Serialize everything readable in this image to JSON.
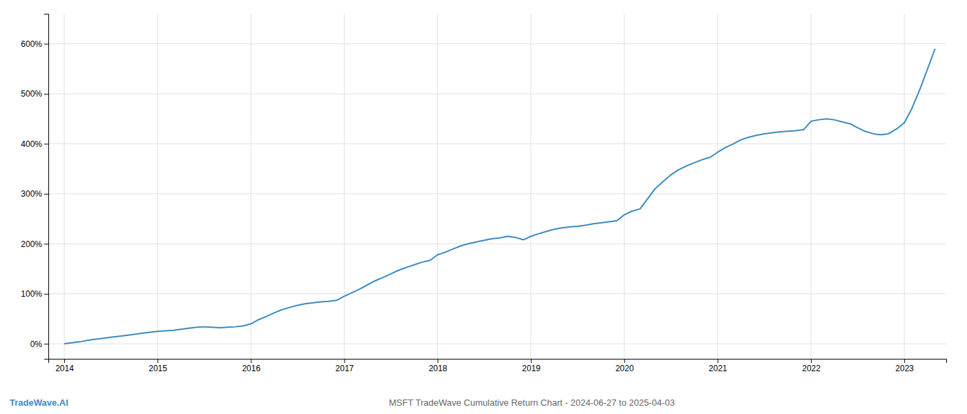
{
  "chart_data": {
    "type": "line",
    "title": "MSFT TradeWave Cumulative Return Chart - 2024-06-27 to 2025-04-03",
    "annotations": [
      "TradeWave.AI"
    ],
    "color": "#3a8abf",
    "grid": true,
    "xlim": [
      2013.83,
      2023.45
    ],
    "ylim": [
      -30,
      660
    ],
    "xticks": [
      2014,
      2015,
      2016,
      2017,
      2018,
      2019,
      2020,
      2021,
      2022,
      2023
    ],
    "yticks": [
      {
        "value": 0,
        "label": "0%"
      },
      {
        "value": 100,
        "label": "100%"
      },
      {
        "value": 200,
        "label": "200%"
      },
      {
        "value": 300,
        "label": "300%"
      },
      {
        "value": 400,
        "label": "400%"
      },
      {
        "value": 500,
        "label": "500%"
      },
      {
        "value": 600,
        "label": "600%"
      }
    ],
    "x": [
      2014.0,
      2014.08,
      2014.17,
      2014.25,
      2014.33,
      2014.42,
      2014.5,
      2014.58,
      2014.67,
      2014.75,
      2014.83,
      2014.92,
      2015.0,
      2015.08,
      2015.17,
      2015.25,
      2015.33,
      2015.42,
      2015.5,
      2015.58,
      2015.67,
      2015.75,
      2015.83,
      2015.92,
      2016.0,
      2016.08,
      2016.17,
      2016.25,
      2016.33,
      2016.42,
      2016.5,
      2016.58,
      2016.67,
      2016.75,
      2016.83,
      2016.92,
      2017.0,
      2017.08,
      2017.17,
      2017.25,
      2017.33,
      2017.42,
      2017.5,
      2017.58,
      2017.67,
      2017.75,
      2017.83,
      2017.92,
      2018.0,
      2018.08,
      2018.17,
      2018.25,
      2018.33,
      2018.42,
      2018.5,
      2018.58,
      2018.67,
      2018.75,
      2018.83,
      2018.92,
      2019.0,
      2019.08,
      2019.17,
      2019.25,
      2019.33,
      2019.42,
      2019.5,
      2019.58,
      2019.67,
      2019.75,
      2019.83,
      2019.92,
      2020.0,
      2020.08,
      2020.17,
      2020.25,
      2020.33,
      2020.42,
      2020.5,
      2020.58,
      2020.67,
      2020.75,
      2020.83,
      2020.92,
      2021.0,
      2021.08,
      2021.17,
      2021.25,
      2021.33,
      2021.42,
      2021.5,
      2021.58,
      2021.67,
      2021.75,
      2021.83,
      2021.92,
      2022.0,
      2022.08,
      2022.17,
      2022.25,
      2022.33,
      2022.42,
      2022.5,
      2022.58,
      2022.67,
      2022.75,
      2022.83,
      2022.92,
      2023.0,
      2023.08,
      2023.17,
      2023.25,
      2023.33
    ],
    "values": [
      0,
      2,
      4,
      7,
      9,
      11,
      13,
      15,
      17,
      19,
      21,
      23,
      25,
      26,
      27,
      29,
      31,
      33,
      34,
      33,
      32,
      33,
      34,
      36,
      40,
      48,
      55,
      62,
      68,
      73,
      77,
      80,
      82,
      84,
      85,
      87,
      95,
      102,
      110,
      118,
      126,
      133,
      140,
      147,
      153,
      158,
      163,
      167,
      178,
      183,
      190,
      196,
      200,
      204,
      207,
      210,
      212,
      215,
      213,
      208,
      215,
      220,
      225,
      229,
      232,
      234,
      235,
      237,
      240,
      242,
      244,
      246,
      258,
      265,
      270,
      290,
      310,
      325,
      338,
      348,
      356,
      362,
      368,
      373,
      383,
      392,
      400,
      408,
      413,
      417,
      420,
      422,
      424,
      425,
      426,
      428,
      445,
      448,
      450,
      448,
      444,
      440,
      432,
      425,
      420,
      418,
      420,
      430,
      442,
      470,
      510,
      550,
      590
    ]
  }
}
